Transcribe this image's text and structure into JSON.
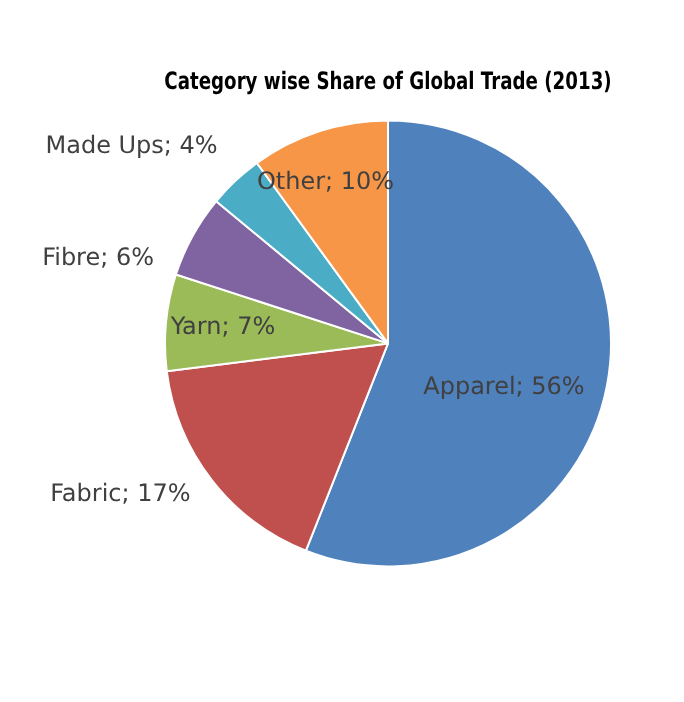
{
  "chart_data": {
    "type": "pie",
    "title": "Category wise Share of Global Trade (2013)",
    "categories": [
      "Apparel",
      "Fabric",
      "Yarn",
      "Fibre",
      "Made Ups",
      "Other"
    ],
    "values": [
      56,
      17,
      7,
      6,
      4,
      10
    ],
    "value_labels": [
      "56%",
      "17%",
      "7%",
      "6%",
      "4%",
      "10%"
    ],
    "colors": [
      "#4f81bd",
      "#c0504d",
      "#9bbb59",
      "#8064a2",
      "#4bacc6",
      "#f79646"
    ]
  }
}
